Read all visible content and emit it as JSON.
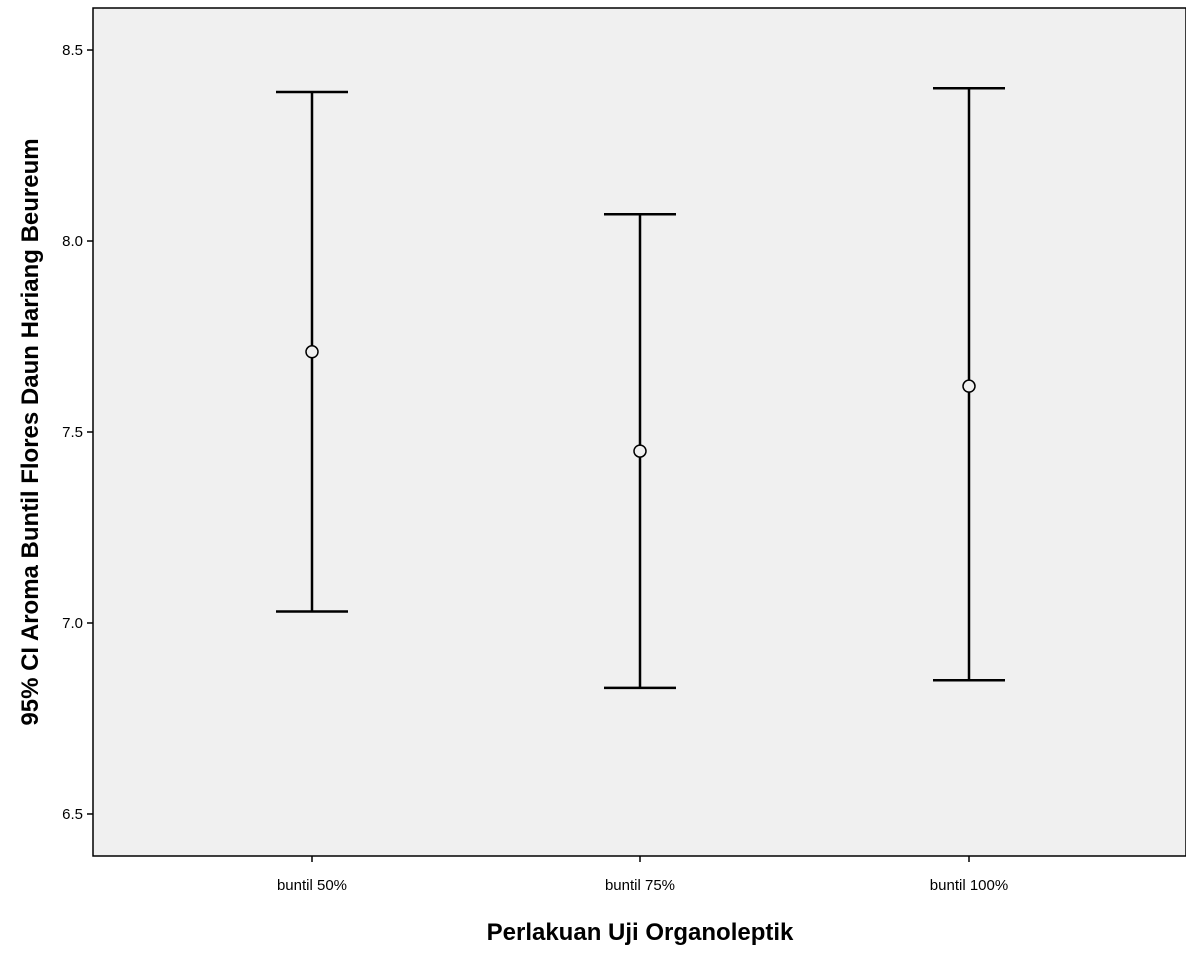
{
  "chart_data": {
    "type": "errorbar",
    "title": "",
    "xlabel": "Perlakuan Uji Organoleptik",
    "ylabel": "95% CI Aroma Buntil Flores Daun Hariang Beureum",
    "categories": [
      "buntil 50%",
      "buntil 75%",
      "buntil 100%"
    ],
    "means": [
      7.71,
      7.45,
      7.62
    ],
    "ci_lower": [
      7.03,
      6.83,
      6.85
    ],
    "ci_upper": [
      8.39,
      8.07,
      8.4
    ],
    "ylim": [
      6.39,
      8.61
    ],
    "yticks": [
      6.5,
      7.0,
      7.5,
      8.0,
      8.5
    ],
    "ytick_labels": [
      "6.5",
      "7.0",
      "7.5",
      "8.0",
      "8.5"
    ],
    "grid": false,
    "plot_background": "#f0f0f0",
    "line_color": "#000000"
  }
}
